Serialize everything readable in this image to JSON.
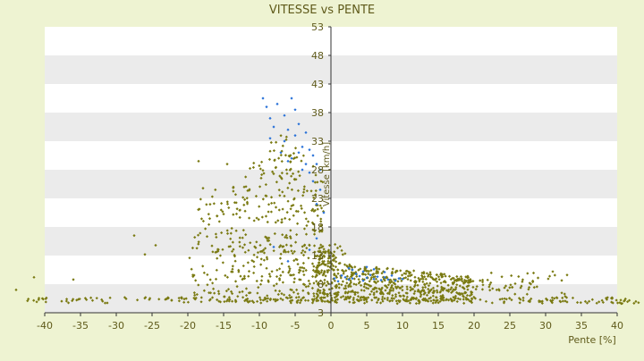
{
  "chart_data": {
    "type": "scatter",
    "title": "VITESSE vs PENTE",
    "xlabel": "Pente [%]",
    "ylabel": "Vitesse [km/h]",
    "xlim": [
      -40,
      40
    ],
    "ylim": [
      3,
      53
    ],
    "x_ticks": [
      -40,
      -35,
      -30,
      -25,
      -20,
      -15,
      -10,
      -5,
      0,
      5,
      10,
      15,
      20,
      25,
      30,
      35,
      40
    ],
    "y_ticks": [
      3,
      8,
      13,
      18,
      23,
      28,
      33,
      38,
      43,
      48,
      53
    ],
    "grid": "horizontal alternating bands",
    "legend": "none",
    "colors": {
      "background": "#eef3d2",
      "band_light": "#ffffff",
      "band_dark": "#ebebeb",
      "axis": "#333333",
      "text": "#5f5a1a",
      "series_olive": "#7a7a12",
      "series_blue": "#2a72d8"
    },
    "series": [
      {
        "color": "#2a72d8",
        "points": [
          [
            -9.5,
            40.5
          ],
          [
            -9.0,
            39.0
          ],
          [
            -8.5,
            37.0
          ],
          [
            -8.0,
            35.5
          ],
          [
            -7.5,
            39.5
          ],
          [
            -6.5,
            37.5
          ],
          [
            -6.0,
            35.0
          ],
          [
            -5.5,
            40.5
          ],
          [
            -5.0,
            38.5
          ],
          [
            -5.0,
            34.0
          ],
          [
            -4.5,
            36.0
          ],
          [
            -4.0,
            32.0
          ],
          [
            -3.5,
            34.5
          ],
          [
            -3.0,
            31.5
          ],
          [
            -2.5,
            30.5
          ],
          [
            -2.0,
            29.0
          ],
          [
            -6.5,
            33.0
          ],
          [
            -7.0,
            31.0
          ],
          [
            -5.5,
            30.0
          ],
          [
            -4.0,
            28.0
          ],
          [
            -3.0,
            27.5
          ],
          [
            -2.5,
            26.0
          ],
          [
            -1.5,
            24.5
          ],
          [
            -2.0,
            22.0
          ],
          [
            -1.0,
            20.5
          ],
          [
            -6.0,
            29.5
          ],
          [
            -3.5,
            29.0
          ],
          [
            -4.5,
            31.0
          ],
          [
            -8.5,
            33.5
          ],
          [
            -1.5,
            28.0
          ],
          [
            0.5,
            9.0
          ],
          [
            1.0,
            8.5
          ],
          [
            1.5,
            9.5
          ],
          [
            2.0,
            9.2
          ],
          [
            2.5,
            8.8
          ],
          [
            3.0,
            9.0
          ],
          [
            3.5,
            9.8
          ],
          [
            4.0,
            9.4
          ],
          [
            4.5,
            8.6
          ],
          [
            5.0,
            9.1
          ],
          [
            5.5,
            9.6
          ],
          [
            6.0,
            8.9
          ],
          [
            6.5,
            9.3
          ],
          [
            7.0,
            8.7
          ],
          [
            7.5,
            9.2
          ],
          [
            8.0,
            8.8
          ],
          [
            8.5,
            9.5
          ],
          [
            9.0,
            8.6
          ],
          [
            9.5,
            9.0
          ],
          [
            10.0,
            8.9
          ],
          [
            3.0,
            10.5
          ],
          [
            4.5,
            10.2
          ],
          [
            6.0,
            10.6
          ],
          [
            7.5,
            10.1
          ],
          [
            2.5,
            10.8
          ],
          [
            5.0,
            11.0
          ],
          [
            -3.0,
            14.0
          ],
          [
            -6.0,
            12.0
          ],
          [
            -8.0,
            14.5
          ],
          [
            -2.0,
            16.0
          ]
        ]
      }
    ],
    "olive_cloud": {
      "cluster_descent": {
        "x_range": [
          -20,
          -1
        ],
        "y_range": [
          5,
          32
        ],
        "count": 520
      },
      "cluster_flat": {
        "x_range": [
          -2,
          20
        ],
        "y_range": [
          5,
          13
        ],
        "count": 650
      },
      "cluster_floor": {
        "x_range": [
          -40,
          40
        ],
        "y_range": [
          4.5,
          5.5
        ],
        "count": 230
      },
      "cluster_positive_sparse": {
        "x_range": [
          20,
          33
        ],
        "y_range": [
          5,
          11
        ],
        "count": 60
      }
    }
  }
}
